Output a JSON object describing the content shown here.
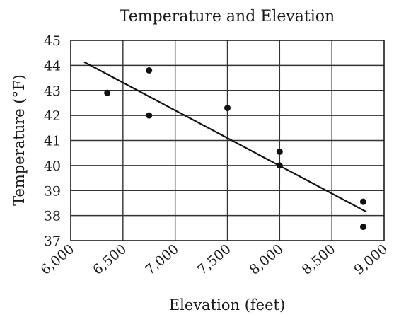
{
  "chart_data": {
    "type": "scatter",
    "title": "Temperature and Elevation",
    "xlabel": "Elevation (feet)",
    "ylabel": "Temperature (°F)",
    "xlim": [
      6000,
      9000
    ],
    "ylim": [
      37,
      45
    ],
    "x_ticks": [
      6000,
      6500,
      7000,
      7500,
      8000,
      8500,
      9000
    ],
    "x_tick_labels": [
      "6,000",
      "6,500",
      "7,000",
      "7,500",
      "8,000",
      "8,500",
      "9,000"
    ],
    "y_ticks": [
      37,
      38,
      39,
      40,
      41,
      42,
      43,
      44,
      45
    ],
    "y_tick_labels": [
      "37",
      "38",
      "39",
      "40",
      "41",
      "42",
      "43",
      "44",
      "45"
    ],
    "grid": true,
    "series": [
      {
        "points": [
          {
            "x": 6350,
            "y": 42.9
          },
          {
            "x": 6750,
            "y": 43.8
          },
          {
            "x": 6750,
            "y": 42.0
          },
          {
            "x": 7500,
            "y": 42.3
          },
          {
            "x": 8000,
            "y": 40.55
          },
          {
            "x": 8000,
            "y": 40.0
          },
          {
            "x": 8800,
            "y": 38.55
          },
          {
            "x": 8800,
            "y": 37.55
          }
        ]
      }
    ],
    "trend_line": {
      "x": [
        6130,
        8830
      ],
      "y": [
        44.13,
        38.15
      ]
    }
  }
}
